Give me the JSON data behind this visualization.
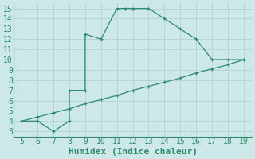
{
  "title": "",
  "xlabel": "Humidex (Indice chaleur)",
  "line1_x": [
    5,
    6,
    7,
    8,
    8,
    9,
    9,
    10,
    11,
    11.5,
    12,
    13,
    14,
    15,
    16,
    17,
    18,
    19
  ],
  "line1_y": [
    4,
    4,
    3,
    4,
    7,
    7,
    12.5,
    12,
    15,
    15,
    15,
    15,
    14,
    13,
    12,
    10,
    10,
    10
  ],
  "line2_x": [
    5,
    6,
    7,
    8,
    9,
    10,
    11,
    12,
    13,
    14,
    15,
    16,
    17,
    18,
    19
  ],
  "line2_y": [
    4,
    4.4,
    4.8,
    5.2,
    5.7,
    6.1,
    6.5,
    7.0,
    7.4,
    7.8,
    8.2,
    8.7,
    9.1,
    9.5,
    10.0
  ],
  "line_color": "#2e8b6e",
  "bg_color": "#cce8e8",
  "grid_color": "#b8d4d4",
  "xlim": [
    4.5,
    19.5
  ],
  "ylim": [
    2.5,
    15.5
  ],
  "xticks": [
    5,
    6,
    7,
    8,
    9,
    10,
    11,
    12,
    13,
    14,
    15,
    16,
    17,
    18,
    19
  ],
  "yticks": [
    3,
    4,
    5,
    6,
    7,
    8,
    9,
    10,
    11,
    12,
    13,
    14,
    15
  ],
  "tick_fontsize": 7,
  "xlabel_fontsize": 8
}
